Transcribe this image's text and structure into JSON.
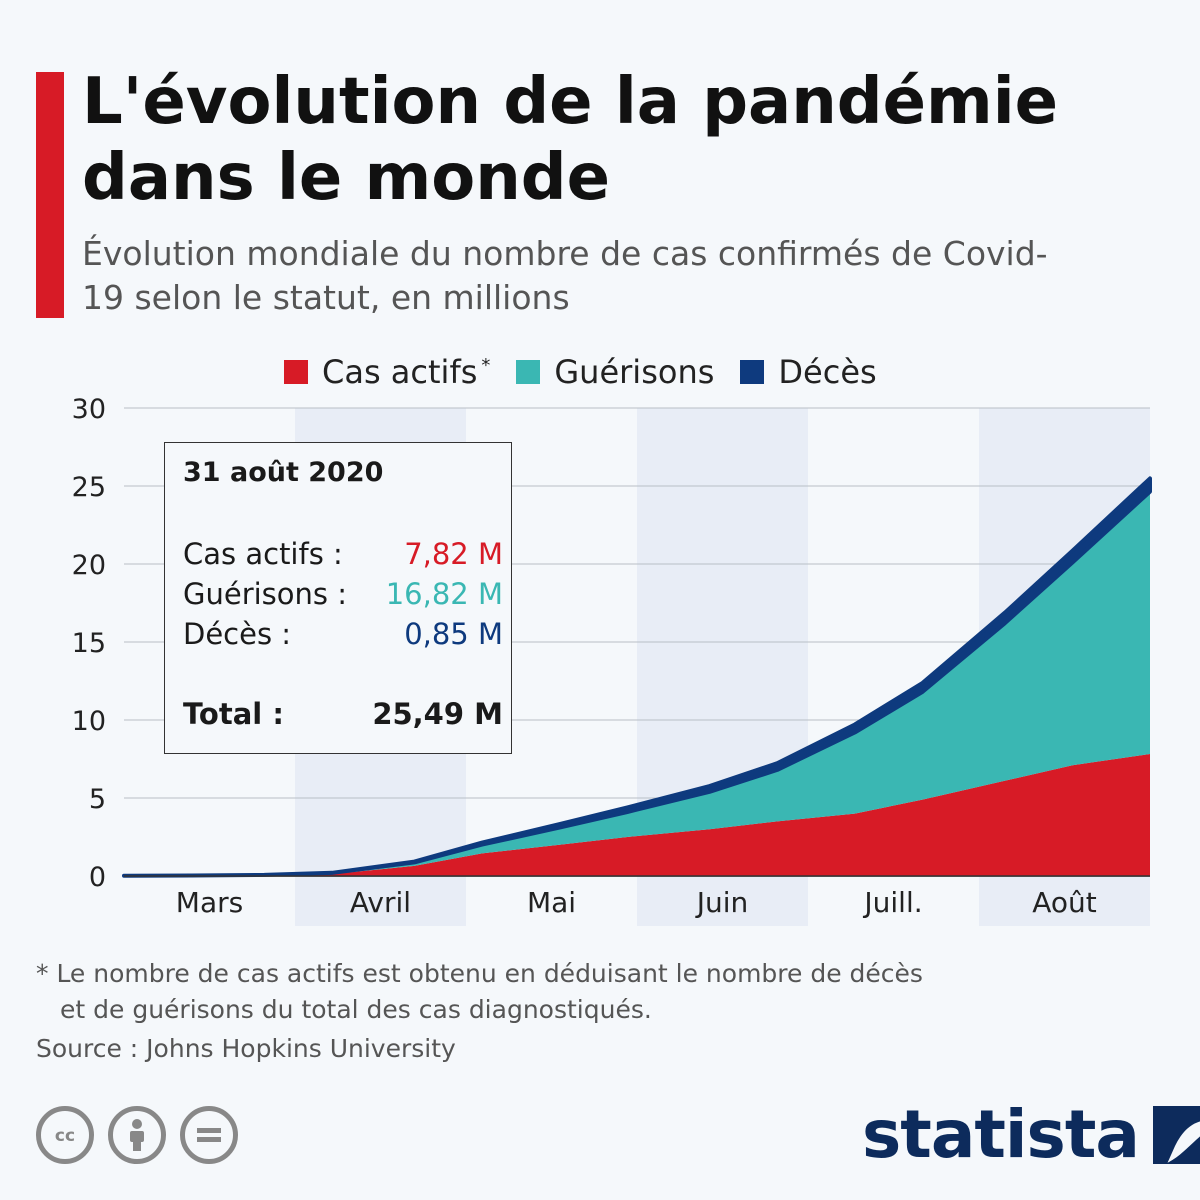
{
  "title": "L'évolution de la pandémie dans le monde",
  "subtitle": "Évolution mondiale du nombre de cas confirmés de Covid-19 selon le statut, en millions",
  "legend": {
    "actifs": "Cas actifs",
    "actifs_mark": "*",
    "guerisons": "Guérisons",
    "deces": "Décès"
  },
  "colors": {
    "actifs": "#d71b26",
    "guerisons": "#3ab7b3",
    "deces": "#0e3a7e",
    "band": "#e8edf6"
  },
  "tooltip": {
    "date": "31 août 2020",
    "actifs_label": "Cas actifs :",
    "actifs_value": "7,82 M",
    "guerisons_label": "Guérisons :",
    "guerisons_value": "16,82 M",
    "deces_label": "Décès :",
    "deces_value": "0,85 M",
    "total_label": "Total :",
    "total_value": "25,49 M"
  },
  "footnote_line1": "* Le nombre de cas actifs est obtenu en déduisant le nombre de décès",
  "footnote_line2": "et de guérisons du total des cas diagnostiqués.",
  "source": "Source : Johns Hopkins University",
  "brand": "statista",
  "icons": [
    "cc-icon",
    "by-icon",
    "nd-icon"
  ],
  "chart_data": {
    "type": "area",
    "stacked": true,
    "xlabel": "",
    "ylabel": "",
    "ylim": [
      0,
      30
    ],
    "yticks": [
      0,
      5,
      10,
      15,
      20,
      25,
      30
    ],
    "grid": true,
    "legend_position": "top",
    "months": [
      "Mars",
      "Avril",
      "Mai",
      "Juin",
      "Juill.",
      "Août"
    ],
    "shaded_months": [
      "Avril",
      "Juin",
      "Août"
    ],
    "x": [
      "2020-02-01",
      "2020-02-15",
      "2020-03-01",
      "2020-03-15",
      "2020-04-01",
      "2020-04-15",
      "2020-05-01",
      "2020-05-15",
      "2020-06-01",
      "2020-06-15",
      "2020-07-01",
      "2020-07-15",
      "2020-08-01",
      "2020-08-15",
      "2020-08-31"
    ],
    "series": [
      {
        "name": "Cas actifs",
        "values": [
          0.01,
          0.02,
          0.04,
          0.12,
          0.65,
          1.45,
          2.0,
          2.5,
          3.0,
          3.5,
          4.0,
          4.9,
          6.1,
          7.1,
          7.82
        ]
      },
      {
        "name": "Guérisons",
        "values": [
          0.0,
          0.01,
          0.03,
          0.08,
          0.22,
          0.56,
          1.1,
          1.6,
          2.4,
          3.3,
          5.2,
          6.9,
          10.1,
          13.0,
          16.82
        ]
      },
      {
        "name": "Décès",
        "values": [
          0.0,
          0.0,
          0.003,
          0.007,
          0.05,
          0.13,
          0.23,
          0.3,
          0.37,
          0.43,
          0.51,
          0.58,
          0.68,
          0.76,
          0.85
        ]
      }
    ]
  }
}
